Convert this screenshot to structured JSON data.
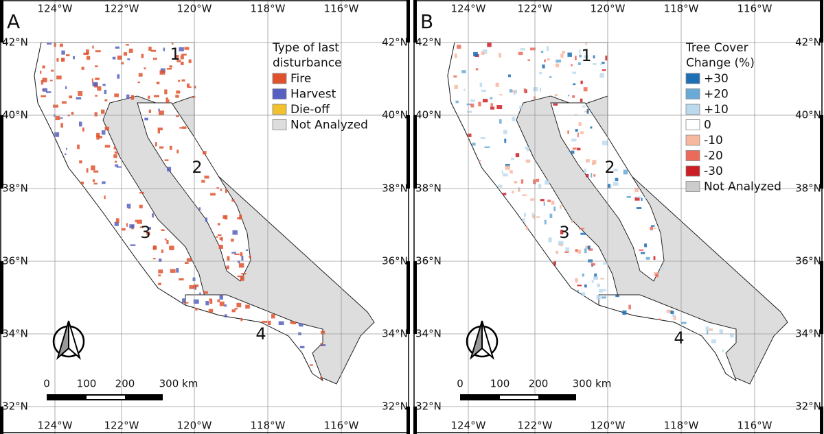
{
  "lon_labels": [
    "124°W",
    "122°W",
    "120°W",
    "118°W",
    "116°W"
  ],
  "lat_labels": [
    "42°N",
    "40°N",
    "38°N",
    "36°N",
    "34°N",
    "32°N"
  ],
  "regions": [
    "1",
    "2",
    "3",
    "4"
  ],
  "scale_bar": {
    "labels": [
      "0",
      "100",
      "200",
      "300 km"
    ]
  },
  "panels": [
    {
      "label": "A",
      "legend": {
        "title_lines": [
          "Type of last",
          "disturbance"
        ],
        "items": [
          {
            "label": "Fire",
            "color": "#e0522e"
          },
          {
            "label": "Harvest",
            "color": "#5560c0"
          },
          {
            "label": "Die-off",
            "color": "#f2c12e"
          },
          {
            "label": "Not Analyzed",
            "color": "#dddddd"
          }
        ]
      }
    },
    {
      "label": "B",
      "legend": {
        "title_lines": [
          "Tree Cover",
          "Change (%)"
        ],
        "items": [
          {
            "label": "+30",
            "color": "#1f6fb4"
          },
          {
            "label": "+20",
            "color": "#6aaad6"
          },
          {
            "label": "+10",
            "color": "#bcdaee"
          },
          {
            "label": "0",
            "color": "#ffffff"
          },
          {
            "label": "-10",
            "color": "#f6b9a0"
          },
          {
            "label": "-20",
            "color": "#ec6a5a"
          },
          {
            "label": "-30",
            "color": "#cc1f25"
          },
          {
            "label": "Not Analyzed",
            "color": "#cccccc"
          }
        ]
      }
    }
  ]
}
